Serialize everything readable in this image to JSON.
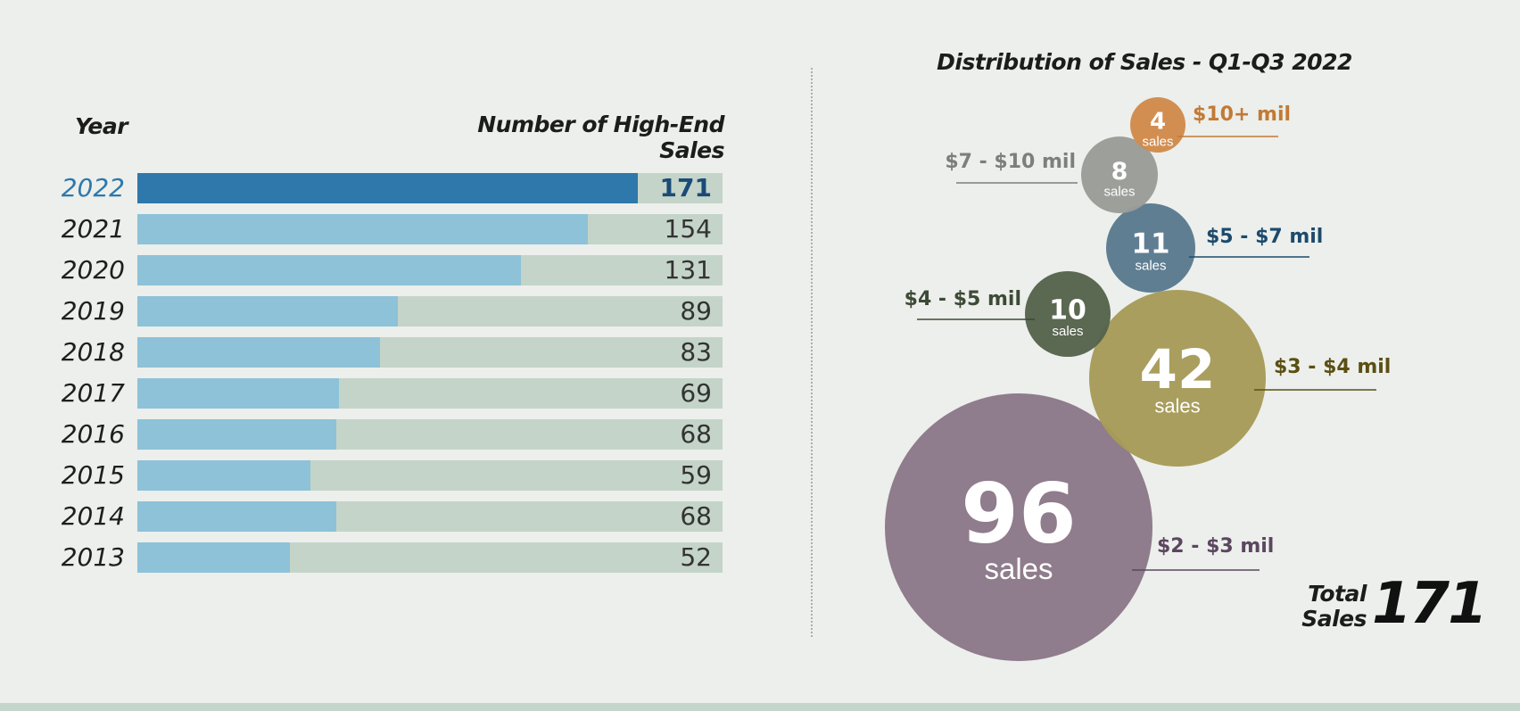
{
  "bar_chart": {
    "year_header": "Year",
    "sales_header": "Number of High-End Sales",
    "highlight_year": "2022",
    "max": 200
  },
  "distribution": {
    "title": "Distribution of Sales - Q1-Q3 2022",
    "unit_label": "sales"
  },
  "total": {
    "label_line1": "Total",
    "label_line2": "Sales",
    "value": "171"
  },
  "colors": {
    "highlight_bar": "#2e78ab",
    "bar": "#8dc2d8",
    "track": "#c4d4c9",
    "background": "#ecefeb"
  },
  "chart_data": [
    {
      "type": "bar",
      "orientation": "horizontal",
      "categories": [
        "2022",
        "2021",
        "2020",
        "2019",
        "2018",
        "2017",
        "2016",
        "2015",
        "2014",
        "2013"
      ],
      "values": [
        171,
        154,
        131,
        89,
        83,
        69,
        68,
        59,
        68,
        52
      ],
      "xlabel": "Number of High-End Sales",
      "ylabel": "Year"
    },
    {
      "type": "bubble",
      "title": "Distribution of Sales - Q1-Q3 2022",
      "items": [
        {
          "label": "$10+ mil",
          "value": 4,
          "color": "#d18a4b",
          "label_color": "#c27a35"
        },
        {
          "label": "$7 - $10 mil",
          "value": 8,
          "color": "#9a9c98",
          "label_color": "#7d7f7b"
        },
        {
          "label": "$5 - $7 mil",
          "value": 11,
          "color": "#5a7a8e",
          "label_color": "#1d4a6c"
        },
        {
          "label": "$4 - $5 mil",
          "value": 10,
          "color": "#56634c",
          "label_color": "#3d4a35"
        },
        {
          "label": "$3 - $4 mil",
          "value": 42,
          "color": "#a69b58",
          "label_color": "#5b4f14"
        },
        {
          "label": "$2 - $3 mil",
          "value": 96,
          "color": "#8b7888",
          "label_color": "#5c4660"
        }
      ]
    }
  ]
}
